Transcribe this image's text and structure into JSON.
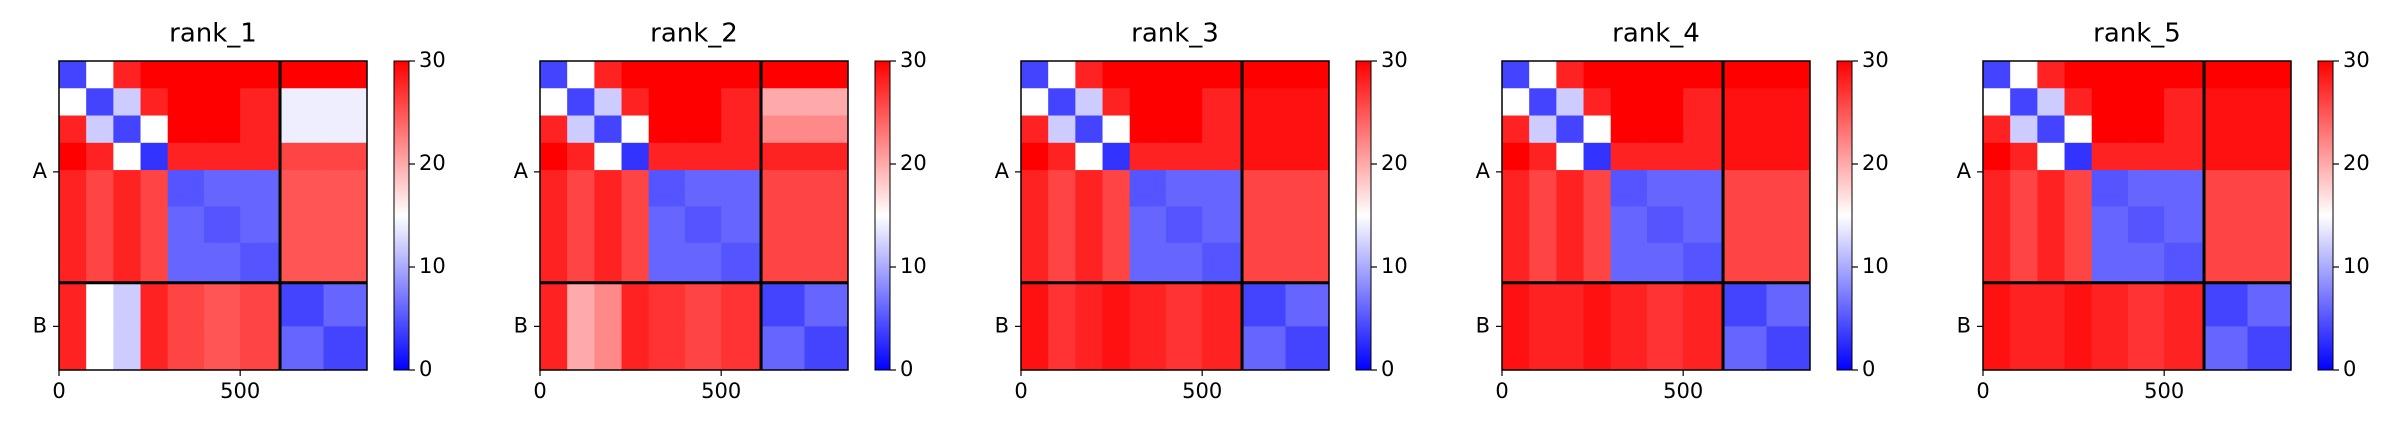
{
  "chart_data": [
    {
      "type": "heatmap",
      "title": "rank_1",
      "bins": [
        0,
        75,
        150,
        225,
        300,
        400,
        500,
        610,
        730,
        850
      ],
      "z": [
        [
          4,
          15,
          28,
          30,
          30,
          30,
          30,
          30,
          30
        ],
        [
          15,
          4,
          12,
          28,
          30,
          30,
          28,
          14,
          14
        ],
        [
          28,
          12,
          4,
          15,
          30,
          30,
          28,
          14,
          14
        ],
        [
          30,
          28,
          15,
          3,
          28,
          28,
          28,
          26,
          26
        ],
        [
          28,
          26,
          28,
          26,
          5,
          6,
          6,
          25,
          25
        ],
        [
          28,
          26,
          28,
          26,
          6,
          5,
          6,
          25,
          25
        ],
        [
          28,
          26,
          28,
          26,
          6,
          6,
          5,
          25,
          25
        ],
        [
          28,
          15,
          12,
          28,
          26,
          25,
          26,
          4,
          6
        ],
        [
          28,
          15,
          12,
          28,
          26,
          25,
          26,
          6,
          4
        ]
      ],
      "xlim": [
        0,
        850
      ],
      "ylim": [
        0,
        850
      ],
      "xticks": [
        0,
        500
      ],
      "yticks": [
        {
          "value": 305,
          "label": "A"
        },
        {
          "value": 730,
          "label": "B"
        }
      ],
      "chain_breaks": [
        610
      ],
      "colorbar": {
        "range": [
          0,
          30
        ],
        "ticks": [
          0,
          10,
          20,
          30
        ],
        "colors": [
          "#0000ff",
          "#ffffff",
          "#ff0000"
        ]
      }
    },
    {
      "type": "heatmap",
      "title": "rank_2",
      "bins": [
        0,
        75,
        150,
        225,
        300,
        400,
        500,
        610,
        730,
        850
      ],
      "z": [
        [
          4,
          15,
          28,
          30,
          30,
          30,
          30,
          30,
          30
        ],
        [
          15,
          4,
          12,
          28,
          30,
          30,
          28,
          20,
          20
        ],
        [
          28,
          12,
          4,
          15,
          30,
          30,
          28,
          22,
          22
        ],
        [
          30,
          28,
          15,
          3,
          28,
          28,
          28,
          28,
          28
        ],
        [
          28,
          26,
          28,
          26,
          5,
          6,
          6,
          26,
          26
        ],
        [
          28,
          26,
          28,
          26,
          6,
          5,
          6,
          26,
          26
        ],
        [
          28,
          26,
          28,
          26,
          6,
          6,
          5,
          26,
          26
        ],
        [
          28,
          20,
          22,
          28,
          27,
          26,
          27,
          4,
          6
        ],
        [
          28,
          20,
          22,
          28,
          27,
          26,
          27,
          6,
          4
        ]
      ],
      "xlim": [
        0,
        850
      ],
      "ylim": [
        0,
        850
      ],
      "xticks": [
        0,
        500
      ],
      "yticks": [
        {
          "value": 305,
          "label": "A"
        },
        {
          "value": 730,
          "label": "B"
        }
      ],
      "chain_breaks": [
        610
      ],
      "colorbar": {
        "range": [
          0,
          30
        ],
        "ticks": [
          0,
          10,
          20,
          30
        ],
        "colors": [
          "#0000ff",
          "#ffffff",
          "#ff0000"
        ]
      }
    },
    {
      "type": "heatmap",
      "title": "rank_3",
      "bins": [
        0,
        75,
        150,
        225,
        300,
        400,
        500,
        610,
        730,
        850
      ],
      "z": [
        [
          4,
          15,
          28,
          30,
          30,
          30,
          30,
          30,
          30
        ],
        [
          15,
          4,
          12,
          28,
          30,
          30,
          28,
          29,
          29
        ],
        [
          28,
          12,
          4,
          15,
          30,
          30,
          28,
          29,
          29
        ],
        [
          30,
          28,
          15,
          3,
          28,
          28,
          28,
          29,
          29
        ],
        [
          28,
          26,
          28,
          26,
          5,
          6,
          6,
          26,
          26
        ],
        [
          28,
          26,
          28,
          26,
          6,
          5,
          6,
          26,
          26
        ],
        [
          28,
          26,
          28,
          26,
          6,
          6,
          5,
          26,
          26
        ],
        [
          29,
          27,
          28,
          29,
          28,
          27,
          28,
          4,
          6
        ],
        [
          29,
          27,
          28,
          29,
          28,
          27,
          28,
          6,
          4
        ]
      ],
      "xlim": [
        0,
        850
      ],
      "ylim": [
        0,
        850
      ],
      "xticks": [
        0,
        500
      ],
      "yticks": [
        {
          "value": 305,
          "label": "A"
        },
        {
          "value": 730,
          "label": "B"
        }
      ],
      "chain_breaks": [
        610
      ],
      "colorbar": {
        "range": [
          0,
          30
        ],
        "ticks": [
          0,
          10,
          20,
          30
        ],
        "colors": [
          "#0000ff",
          "#ffffff",
          "#ff0000"
        ]
      }
    },
    {
      "type": "heatmap",
      "title": "rank_4",
      "bins": [
        0,
        75,
        150,
        225,
        300,
        400,
        500,
        610,
        730,
        850
      ],
      "z": [
        [
          4,
          15,
          28,
          30,
          30,
          30,
          30,
          30,
          30
        ],
        [
          15,
          4,
          12,
          28,
          30,
          30,
          28,
          29,
          29
        ],
        [
          28,
          12,
          4,
          15,
          30,
          30,
          28,
          29,
          29
        ],
        [
          30,
          28,
          15,
          3,
          28,
          28,
          28,
          29,
          29
        ],
        [
          28,
          26,
          28,
          26,
          5,
          6,
          6,
          26,
          26
        ],
        [
          28,
          26,
          28,
          26,
          6,
          5,
          6,
          26,
          26
        ],
        [
          28,
          26,
          28,
          26,
          6,
          6,
          5,
          26,
          26
        ],
        [
          29,
          28,
          28,
          29,
          28,
          27,
          28,
          4,
          6
        ],
        [
          29,
          28,
          28,
          29,
          28,
          27,
          28,
          6,
          4
        ]
      ],
      "xlim": [
        0,
        850
      ],
      "ylim": [
        0,
        850
      ],
      "xticks": [
        0,
        500
      ],
      "yticks": [
        {
          "value": 305,
          "label": "A"
        },
        {
          "value": 730,
          "label": "B"
        }
      ],
      "chain_breaks": [
        610
      ],
      "colorbar": {
        "range": [
          0,
          30
        ],
        "ticks": [
          0,
          10,
          20,
          30
        ],
        "colors": [
          "#0000ff",
          "#ffffff",
          "#ff0000"
        ]
      }
    },
    {
      "type": "heatmap",
      "title": "rank_5",
      "bins": [
        0,
        75,
        150,
        225,
        300,
        400,
        500,
        610,
        730,
        850
      ],
      "z": [
        [
          4,
          15,
          28,
          30,
          30,
          30,
          30,
          30,
          30
        ],
        [
          15,
          4,
          12,
          28,
          30,
          30,
          28,
          29,
          29
        ],
        [
          28,
          12,
          4,
          15,
          30,
          30,
          28,
          29,
          29
        ],
        [
          30,
          28,
          15,
          3,
          28,
          28,
          28,
          29,
          29
        ],
        [
          28,
          26,
          28,
          26,
          5,
          6,
          6,
          26,
          26
        ],
        [
          28,
          26,
          28,
          26,
          6,
          5,
          6,
          26,
          26
        ],
        [
          28,
          26,
          28,
          26,
          6,
          6,
          5,
          26,
          26
        ],
        [
          29,
          28,
          28,
          29,
          28,
          27,
          28,
          4,
          6
        ],
        [
          29,
          28,
          28,
          29,
          28,
          27,
          28,
          6,
          4
        ]
      ],
      "xlim": [
        0,
        850
      ],
      "ylim": [
        0,
        850
      ],
      "xticks": [
        0,
        500
      ],
      "yticks": [
        {
          "value": 305,
          "label": "A"
        },
        {
          "value": 730,
          "label": "B"
        }
      ],
      "chain_breaks": [
        610
      ],
      "colorbar": {
        "range": [
          0,
          30
        ],
        "ticks": [
          0,
          10,
          20,
          30
        ],
        "colors": [
          "#0000ff",
          "#ffffff",
          "#ff0000"
        ]
      }
    }
  ]
}
